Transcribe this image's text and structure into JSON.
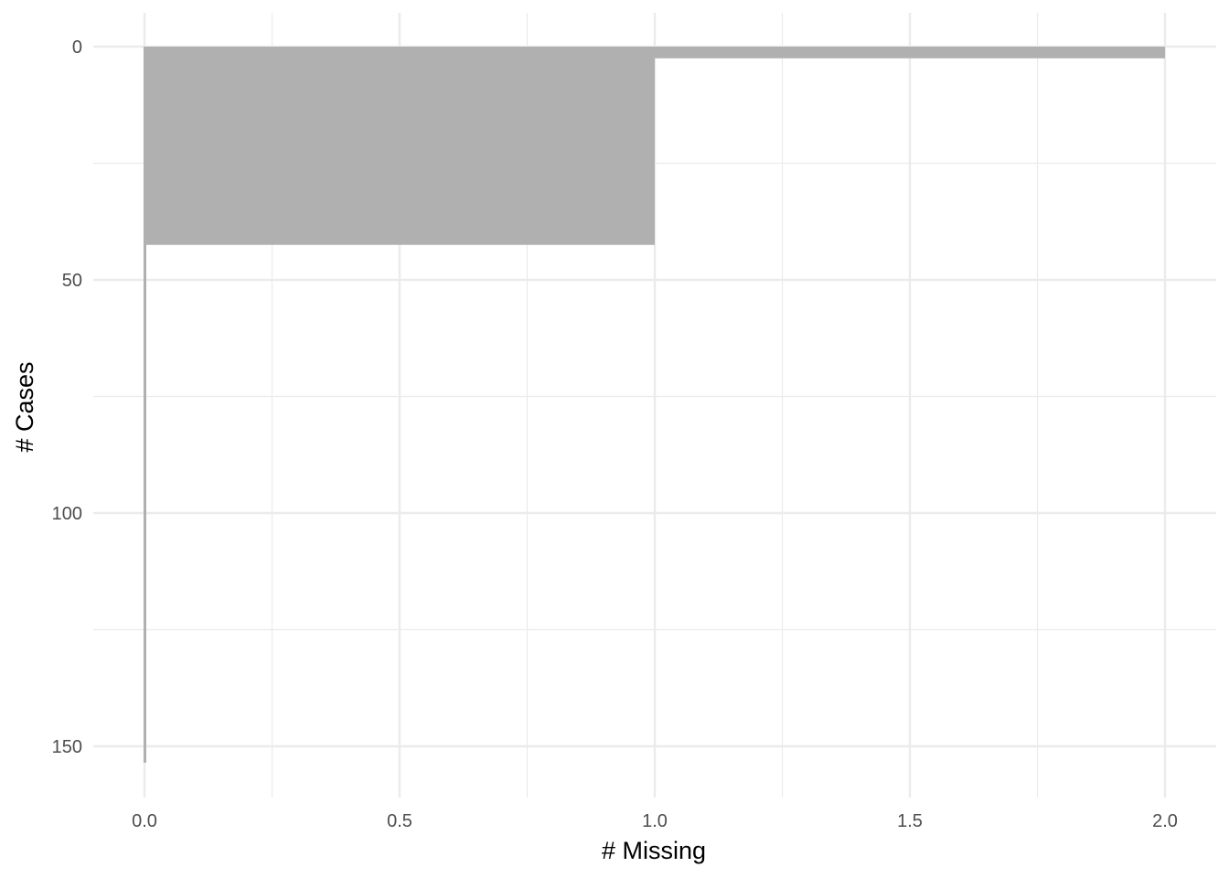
{
  "chart_data": {
    "type": "bar",
    "orientation": "horizontal",
    "title": "",
    "xlabel": "# Missing",
    "ylabel": "# Cases",
    "xlim": [
      -0.1,
      2.1
    ],
    "ylim": [
      160,
      -7
    ],
    "y_reversed": true,
    "x_ticks": [
      "0.0",
      "0.5",
      "1.0",
      "1.5",
      "2.0"
    ],
    "x_tick_values": [
      0,
      0.5,
      1.0,
      1.5,
      2.0
    ],
    "y_ticks": [
      "0",
      "50",
      "100",
      "150"
    ],
    "y_tick_values": [
      0,
      50,
      100,
      150
    ],
    "grid": true,
    "legend": "none",
    "bars": [
      {
        "y_start": 0,
        "y_end": 153.5,
        "x": 0
      },
      {
        "y_start": 0,
        "y_end": 42.5,
        "x": 1
      },
      {
        "y_start": 0,
        "y_end": 2.5,
        "x": 2
      }
    ],
    "bar_color": "#b0b0b0",
    "grid_color": "#ebebeb"
  }
}
